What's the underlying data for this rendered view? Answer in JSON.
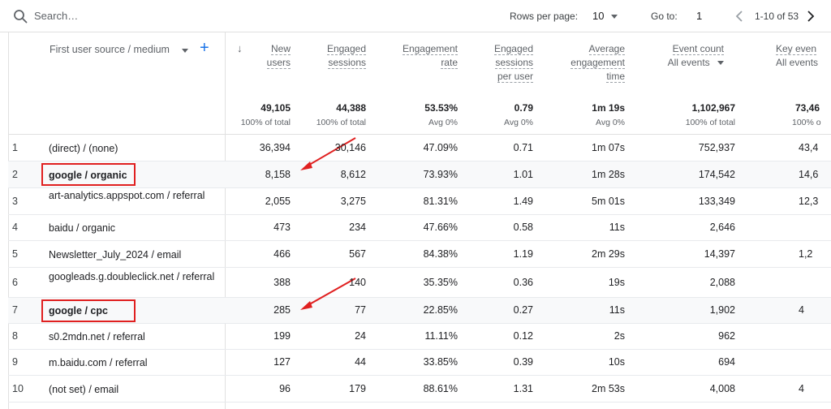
{
  "toolbar": {
    "search_placeholder": "Search…",
    "rows_per_page_label": "Rows per page:",
    "rows_per_page_value": "10",
    "goto_label": "Go to:",
    "goto_value": "1",
    "page_range": "1-10 of 53"
  },
  "dimension_header": {
    "label": "First user source / medium",
    "add": "+"
  },
  "sort_arrow": "↓",
  "columns": [
    {
      "lines": [
        "New",
        "users"
      ],
      "total": "49,105",
      "total_sub": "100% of total"
    },
    {
      "lines": [
        "Engaged",
        "sessions"
      ],
      "total": "44,388",
      "total_sub": "100% of total"
    },
    {
      "lines": [
        "Engagement",
        "rate"
      ],
      "total": "53.53%",
      "total_sub": "Avg 0%"
    },
    {
      "lines": [
        "Engaged",
        "sessions",
        "per user"
      ],
      "total": "0.79",
      "total_sub": "Avg 0%"
    },
    {
      "lines": [
        "Average",
        "engagement",
        "time"
      ],
      "total": "1m 19s",
      "total_sub": "Avg 0%"
    },
    {
      "lines": [
        "Event count",
        "All events"
      ],
      "total": "1,102,967",
      "total_sub": "100% of total"
    },
    {
      "lines": [
        "Key even",
        "All events"
      ],
      "total": "73,46",
      "total_sub": "100% o"
    }
  ],
  "rows": [
    {
      "n": "1",
      "label": "(direct) / (none)",
      "values": [
        "36,394",
        "30,146",
        "47.09%",
        "0.71",
        "1m 07s",
        "752,937",
        "43,4"
      ]
    },
    {
      "n": "2",
      "label": "google / organic",
      "values": [
        "8,158",
        "8,612",
        "73.93%",
        "1.01",
        "1m 28s",
        "174,542",
        "14,6"
      ]
    },
    {
      "n": "3",
      "label": "art-analytics.appspot.com / referral",
      "values": [
        "2,055",
        "3,275",
        "81.31%",
        "1.49",
        "5m 01s",
        "133,349",
        "12,3"
      ]
    },
    {
      "n": "4",
      "label": "baidu / organic",
      "values": [
        "473",
        "234",
        "47.66%",
        "0.58",
        "11s",
        "2,646",
        ""
      ]
    },
    {
      "n": "5",
      "label": "Newsletter_July_2024 / email",
      "values": [
        "466",
        "567",
        "84.38%",
        "1.19",
        "2m 29s",
        "14,397",
        "1,2"
      ]
    },
    {
      "n": "6",
      "label": "googleads.g.doubleclick.net / referral",
      "values": [
        "388",
        "140",
        "35.35%",
        "0.36",
        "19s",
        "2,088",
        ""
      ]
    },
    {
      "n": "7",
      "label": "google / cpc",
      "values": [
        "285",
        "77",
        "22.85%",
        "0.27",
        "11s",
        "1,902",
        "4"
      ]
    },
    {
      "n": "8",
      "label": "s0.2mdn.net / referral",
      "values": [
        "199",
        "24",
        "11.11%",
        "0.12",
        "2s",
        "962",
        ""
      ]
    },
    {
      "n": "9",
      "label": "m.baidu.com / referral",
      "values": [
        "127",
        "44",
        "33.85%",
        "0.39",
        "10s",
        "694",
        ""
      ]
    },
    {
      "n": "10",
      "label": "(not set) / email",
      "values": [
        "96",
        "179",
        "88.61%",
        "1.31",
        "2m 53s",
        "4,008",
        "4"
      ]
    }
  ],
  "colors": {
    "accent": "#1a73e8",
    "highlight": "#e02020"
  },
  "icons": {
    "search": "search-icon",
    "prev": "chevron-left-icon",
    "next": "chevron-right-icon"
  }
}
